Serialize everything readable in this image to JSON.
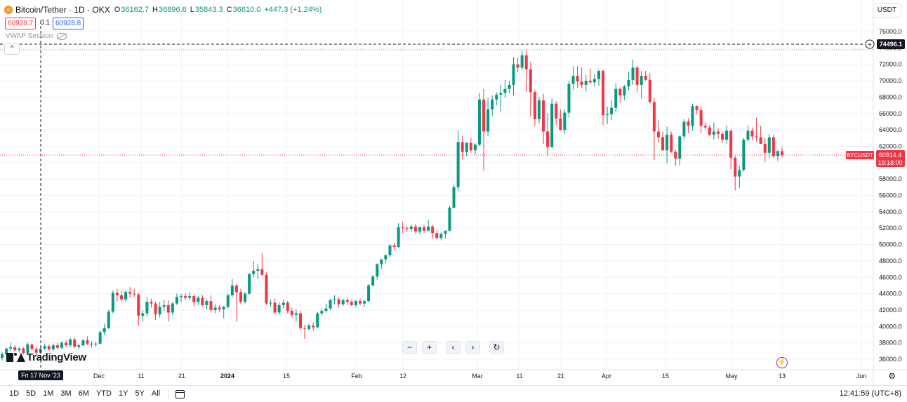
{
  "legend": {
    "symbol": "Bitcoin/Tether · 1D · OKX",
    "open_label": "O",
    "open": "36162.7",
    "high_label": "H",
    "high": "36896.6",
    "low_label": "L",
    "low": "35843.3",
    "close_label": "C",
    "close": "36610.0",
    "change": "+447.3 (+1.24%)"
  },
  "sell_price": "60928.7",
  "spread": "0.1",
  "buy_price": "60928.8",
  "indicator": {
    "name": "VWAP Session"
  },
  "collapse_glyph": "^",
  "currency": "USDT",
  "crosshair": {
    "price_label": "74496.1",
    "date_label": "Fri 17 Nov '23",
    "plus_glyph": "+"
  },
  "last_price": {
    "symbol": "BTCUSDT",
    "price": "60914.4",
    "countdown": "19:18:00"
  },
  "price_axis": [
    "76000.0",
    "74000.0",
    "72000.0",
    "70000.0",
    "68000.0",
    "66000.0",
    "64000.0",
    "62000.0",
    "60000.0",
    "58000.0",
    "56000.0",
    "54000.0",
    "52000.0",
    "50000.0",
    "48000.0",
    "46000.0",
    "44000.0",
    "42000.0",
    "40000.0",
    "38000.0",
    "36000.0"
  ],
  "time_axis": [
    "Dec",
    "11",
    "21",
    "2024",
    "15",
    "Feb",
    "12",
    "Mar",
    "11",
    "21",
    "Apr",
    "15",
    "May",
    "13",
    "Jun"
  ],
  "nav": {
    "zoom_out": "−",
    "zoom_in": "+",
    "scroll_left": "‹",
    "scroll_right": "›",
    "reset": "↻"
  },
  "brand": "TradingView",
  "ranges": [
    "1D",
    "5D",
    "1M",
    "3M",
    "6M",
    "YTD",
    "1Y",
    "5Y",
    "All"
  ],
  "time": "12:41:59 (UTC+8)",
  "colors": {
    "up": "#089981",
    "down": "#f23645",
    "crosshair": "#131722",
    "last_price": "#f23645",
    "grid": "#f0f3fa"
  },
  "chart_data": {
    "type": "candlestick",
    "title": "Bitcoin/Tether · 1D · OKX",
    "ylim": [
      35000,
      77000
    ],
    "candles": [
      [
        36162.7,
        36896.6,
        35843.3,
        36610.0
      ],
      [
        36610.0,
        37400.0,
        36300.0,
        37300.0
      ],
      [
        37300.0,
        38000.0,
        37000.0,
        37450.0
      ],
      [
        37450.0,
        37700.0,
        36900.0,
        37100.0
      ],
      [
        37100.0,
        37500.0,
        36800.0,
        37300.0
      ],
      [
        37300.0,
        37450.0,
        36600.0,
        36750.0
      ],
      [
        36750.0,
        38000.0,
        36600.0,
        37800.0
      ],
      [
        37800.0,
        37900.0,
        37100.0,
        37250.0
      ],
      [
        37250.0,
        37500.0,
        36500.0,
        36800.0
      ],
      [
        36800.0,
        37600.0,
        36600.0,
        37300.0
      ],
      [
        37300.0,
        37900.0,
        37100.0,
        37600.0
      ],
      [
        37600.0,
        37800.0,
        37000.0,
        37200.0
      ],
      [
        37200.0,
        37900.0,
        37000.0,
        37700.0
      ],
      [
        37700.0,
        38000.0,
        37200.0,
        37400.0
      ],
      [
        37400.0,
        38200.0,
        37200.0,
        38000.0
      ],
      [
        38000.0,
        38300.0,
        37500.0,
        37700.0
      ],
      [
        37700.0,
        38600.0,
        37500.0,
        38400.0
      ],
      [
        38400.0,
        38600.0,
        37400.0,
        37500.0
      ],
      [
        37500.0,
        37900.0,
        37200.0,
        37700.0
      ],
      [
        37700.0,
        38500.0,
        37600.0,
        38300.0
      ],
      [
        38300.0,
        38800.0,
        37700.0,
        37900.0
      ],
      [
        37900.0,
        38200.0,
        37400.0,
        37800.0
      ],
      [
        37800.0,
        38100.0,
        37500.0,
        37900.0
      ],
      [
        37900.0,
        39500.0,
        37800.0,
        39300.0
      ],
      [
        39300.0,
        40300.0,
        39000.0,
        39800.0
      ],
      [
        39800.0,
        42000.0,
        39700.0,
        41800.0
      ],
      [
        41800.0,
        44400.0,
        41600.0,
        44100.0
      ],
      [
        44100.0,
        44600.0,
        43100.0,
        43800.0
      ],
      [
        43800.0,
        44300.0,
        43100.0,
        43300.0
      ],
      [
        43300.0,
        44400.0,
        43000.0,
        44200.0
      ],
      [
        44200.0,
        44800.0,
        43500.0,
        44000.0
      ],
      [
        44000.0,
        44600.0,
        43600.0,
        43900.0
      ],
      [
        43900.0,
        44100.0,
        40100.0,
        41300.0
      ],
      [
        41300.0,
        42000.0,
        40600.0,
        41600.0
      ],
      [
        41600.0,
        43600.0,
        41200.0,
        43000.0
      ],
      [
        43000.0,
        43400.0,
        42300.0,
        42800.0
      ],
      [
        42800.0,
        43000.0,
        40800.0,
        41500.0
      ],
      [
        41500.0,
        43000.0,
        41100.0,
        42400.0
      ],
      [
        42400.0,
        43300.0,
        41900.0,
        42600.0
      ],
      [
        42600.0,
        43200.0,
        40600.0,
        41700.0
      ],
      [
        41700.0,
        43000.0,
        41400.0,
        42800.0
      ],
      [
        42800.0,
        44000.0,
        42600.0,
        43600.0
      ],
      [
        43600.0,
        44000.0,
        43000.0,
        43700.0
      ],
      [
        43700.0,
        44000.0,
        43200.0,
        43500.0
      ],
      [
        43500.0,
        44200.0,
        43200.0,
        43700.0
      ],
      [
        43700.0,
        43900.0,
        42500.0,
        43000.0
      ],
      [
        43000.0,
        43700.0,
        42600.0,
        43500.0
      ],
      [
        43500.0,
        43800.0,
        42400.0,
        42600.0
      ],
      [
        42600.0,
        43400.0,
        42100.0,
        43100.0
      ],
      [
        43100.0,
        43800.0,
        41700.0,
        42000.0
      ],
      [
        42000.0,
        42700.0,
        41600.0,
        42300.0
      ],
      [
        42300.0,
        42600.0,
        41800.0,
        42100.0
      ],
      [
        42100.0,
        42500.0,
        41000.0,
        42400.0
      ],
      [
        42400.0,
        44000.0,
        42200.0,
        43800.0
      ],
      [
        43800.0,
        45800.0,
        43600.0,
        45000.0
      ],
      [
        45000.0,
        45200.0,
        40600.0,
        44200.0
      ],
      [
        44200.0,
        44600.0,
        42700.0,
        43000.0
      ],
      [
        43000.0,
        44200.0,
        42800.0,
        44000.0
      ],
      [
        44000.0,
        46500.0,
        43900.0,
        46400.0
      ],
      [
        46400.0,
        48000.0,
        46000.0,
        46800.0
      ],
      [
        46800.0,
        47600.0,
        45800.0,
        47000.0
      ],
      [
        47000.0,
        49000.0,
        46200.0,
        46300.0
      ],
      [
        46300.0,
        46600.0,
        42600.0,
        42800.0
      ],
      [
        42800.0,
        43300.0,
        42400.0,
        42900.0
      ],
      [
        42900.0,
        43400.0,
        41500.0,
        41700.0
      ],
      [
        41700.0,
        43000.0,
        41400.0,
        42600.0
      ],
      [
        42600.0,
        43300.0,
        42200.0,
        42900.0
      ],
      [
        42900.0,
        43100.0,
        41600.0,
        41900.0
      ],
      [
        41900.0,
        42300.0,
        41100.0,
        41400.0
      ],
      [
        41400.0,
        42100.0,
        40600.0,
        41600.0
      ],
      [
        41600.0,
        41900.0,
        39600.0,
        39800.0
      ],
      [
        39800.0,
        40200.0,
        38500.0,
        39700.0
      ],
      [
        39700.0,
        40300.0,
        39500.0,
        40100.0
      ],
      [
        40100.0,
        40500.0,
        39500.0,
        39900.0
      ],
      [
        39900.0,
        41800.0,
        39800.0,
        41600.0
      ],
      [
        41600.0,
        42200.0,
        41300.0,
        41900.0
      ],
      [
        41900.0,
        42800.0,
        41700.0,
        42200.0
      ],
      [
        42200.0,
        43400.0,
        42000.0,
        43200.0
      ],
      [
        43200.0,
        43800.0,
        42700.0,
        43300.0
      ],
      [
        43300.0,
        43600.0,
        42300.0,
        42700.0
      ],
      [
        42700.0,
        43400.0,
        42500.0,
        43200.0
      ],
      [
        43200.0,
        43500.0,
        42600.0,
        43000.0
      ],
      [
        43000.0,
        43300.0,
        42500.0,
        42600.0
      ],
      [
        42600.0,
        43200.0,
        42300.0,
        43100.0
      ],
      [
        43100.0,
        43400.0,
        42600.0,
        42800.0
      ],
      [
        42800.0,
        43200.0,
        42400.0,
        43100.0
      ],
      [
        43100.0,
        45200.0,
        42900.0,
        45000.0
      ],
      [
        45000.0,
        46300.0,
        44900.0,
        46100.0
      ],
      [
        46100.0,
        47700.0,
        45700.0,
        47600.0
      ],
      [
        47600.0,
        48200.0,
        47000.0,
        48200.0
      ],
      [
        48200.0,
        48800.0,
        47700.0,
        48700.0
      ],
      [
        48700.0,
        50000.0,
        48400.0,
        49900.0
      ],
      [
        49900.0,
        50200.0,
        49300.0,
        49700.0
      ],
      [
        49700.0,
        52600.0,
        49600.0,
        52100.0
      ],
      [
        52100.0,
        52800.0,
        51400.0,
        52000.0
      ],
      [
        52000.0,
        52300.0,
        51500.0,
        51900.0
      ],
      [
        51900.0,
        52400.0,
        51600.0,
        52200.0
      ],
      [
        52200.0,
        52500.0,
        51300.0,
        51600.0
      ],
      [
        51600.0,
        52200.0,
        51200.0,
        52100.0
      ],
      [
        52100.0,
        52400.0,
        51400.0,
        51700.0
      ],
      [
        51700.0,
        53000.0,
        51600.0,
        52200.0
      ],
      [
        52200.0,
        52400.0,
        50700.0,
        51400.0
      ],
      [
        51400.0,
        51700.0,
        50600.0,
        50800.0
      ],
      [
        50800.0,
        51500.0,
        50500.0,
        51300.0
      ],
      [
        51300.0,
        51700.0,
        50700.0,
        51700.0
      ],
      [
        51700.0,
        54700.0,
        51600.0,
        54500.0
      ],
      [
        54500.0,
        57300.0,
        54400.0,
        57000.0
      ],
      [
        57000.0,
        63900.0,
        56500.0,
        62500.0
      ],
      [
        62500.0,
        63300.0,
        60400.0,
        61300.0
      ],
      [
        61300.0,
        62500.0,
        60800.0,
        62400.0
      ],
      [
        62400.0,
        63000.0,
        61200.0,
        61500.0
      ],
      [
        61500.0,
        62400.0,
        61000.0,
        62200.0
      ],
      [
        62200.0,
        68500.0,
        62000.0,
        67700.0
      ],
      [
        67700.0,
        69000.0,
        59000.0,
        63800.0
      ],
      [
        63800.0,
        67900.0,
        63200.0,
        66500.0
      ],
      [
        66500.0,
        68200.0,
        65700.0,
        67700.0
      ],
      [
        67700.0,
        68600.0,
        67000.0,
        68300.0
      ],
      [
        68300.0,
        69500.0,
        66200.0,
        68500.0
      ],
      [
        68500.0,
        70100.0,
        67900.0,
        69000.0
      ],
      [
        69000.0,
        70000.0,
        68500.0,
        69500.0
      ],
      [
        69500.0,
        72900.0,
        68200.0,
        72000.0
      ],
      [
        72000.0,
        72800.0,
        71000.0,
        71600.0
      ],
      [
        71600.0,
        73700.0,
        71300.0,
        73100.0
      ],
      [
        73100.0,
        73800.0,
        68600.0,
        71400.0
      ],
      [
        71400.0,
        72300.0,
        65600.0,
        68600.0
      ],
      [
        68600.0,
        68900.0,
        64500.0,
        65300.0
      ],
      [
        65300.0,
        68000.0,
        64800.0,
        67600.0
      ],
      [
        67600.0,
        68400.0,
        62300.0,
        63800.0
      ],
      [
        63800.0,
        66000.0,
        60800.0,
        61900.0
      ],
      [
        61900.0,
        67800.0,
        61800.0,
        67200.0
      ],
      [
        67200.0,
        67500.0,
        64600.0,
        65400.0
      ],
      [
        65400.0,
        66500.0,
        63900.0,
        64000.0
      ],
      [
        64000.0,
        66500.0,
        63500.0,
        66100.0
      ],
      [
        66100.0,
        70000.0,
        65500.0,
        69600.0
      ],
      [
        69600.0,
        71800.0,
        68900.0,
        70600.0
      ],
      [
        70600.0,
        71800.0,
        69100.0,
        69900.0
      ],
      [
        69900.0,
        71600.0,
        69100.0,
        69500.0
      ],
      [
        69500.0,
        70700.0,
        68700.0,
        70000.0
      ],
      [
        70000.0,
        71500.0,
        69600.0,
        69800.0
      ],
      [
        69800.0,
        70800.0,
        69300.0,
        70200.0
      ],
      [
        70200.0,
        71400.0,
        69400.0,
        71200.0
      ],
      [
        71200.0,
        71400.0,
        64600.0,
        65800.0
      ],
      [
        65800.0,
        66800.0,
        64700.0,
        65900.0
      ],
      [
        65900.0,
        67600.0,
        65200.0,
        66700.0
      ],
      [
        66700.0,
        69700.0,
        66200.0,
        69000.0
      ],
      [
        69000.0,
        69200.0,
        67300.0,
        68200.0
      ],
      [
        68200.0,
        69500.0,
        67600.0,
        69300.0
      ],
      [
        69300.0,
        71100.0,
        68800.0,
        70100.0
      ],
      [
        70100.0,
        72600.0,
        69500.0,
        71600.0
      ],
      [
        71600.0,
        71800.0,
        68600.0,
        69500.0
      ],
      [
        69500.0,
        71200.0,
        67800.0,
        70600.0
      ],
      [
        70600.0,
        71200.0,
        70000.0,
        70100.0
      ],
      [
        70100.0,
        70900.0,
        67200.0,
        67400.0
      ],
      [
        67400.0,
        67900.0,
        60300.0,
        63800.0
      ],
      [
        63800.0,
        65200.0,
        62500.0,
        63100.0
      ],
      [
        63100.0,
        63800.0,
        61500.0,
        61500.0
      ],
      [
        61500.0,
        64400.0,
        59900.0,
        63400.0
      ],
      [
        63400.0,
        63800.0,
        61200.0,
        61300.0
      ],
      [
        61300.0,
        61600.0,
        59600.0,
        60500.0
      ],
      [
        60500.0,
        63300.0,
        59700.0,
        63200.0
      ],
      [
        63200.0,
        65300.0,
        62800.0,
        65000.0
      ],
      [
        65000.0,
        65400.0,
        63600.0,
        64500.0
      ],
      [
        64500.0,
        67200.0,
        63900.0,
        66900.0
      ],
      [
        66900.0,
        67000.0,
        65900.0,
        66400.0
      ],
      [
        66400.0,
        66800.0,
        63600.0,
        64500.0
      ],
      [
        64500.0,
        64900.0,
        64000.0,
        64300.0
      ],
      [
        64300.0,
        64600.0,
        63200.0,
        63400.0
      ],
      [
        63400.0,
        64900.0,
        62800.0,
        63800.0
      ],
      [
        63800.0,
        64200.0,
        62900.0,
        63500.0
      ],
      [
        63500.0,
        63800.0,
        62400.0,
        62800.0
      ],
      [
        62800.0,
        64500.0,
        62300.0,
        63900.0
      ],
      [
        63900.0,
        64000.0,
        59200.0,
        60600.0
      ],
      [
        60600.0,
        60800.0,
        56600.0,
        58300.0
      ],
      [
        58300.0,
        59600.0,
        56900.0,
        59100.0
      ],
      [
        59100.0,
        63000.0,
        58900.0,
        62800.0
      ],
      [
        62800.0,
        64500.0,
        62600.0,
        63900.0
      ],
      [
        63900.0,
        64300.0,
        62700.0,
        63200.0
      ],
      [
        63200.0,
        65500.0,
        62600.0,
        63100.0
      ],
      [
        63100.0,
        64500.0,
        62300.0,
        62300.0
      ],
      [
        62300.0,
        63000.0,
        60100.0,
        61200.0
      ],
      [
        61200.0,
        63500.0,
        60600.0,
        63100.0
      ],
      [
        63100.0,
        63400.0,
        60600.0,
        60800.0
      ],
      [
        60800.0,
        61500.0,
        60200.0,
        61400.0
      ],
      [
        61400.0,
        61900.0,
        60600.0,
        60914.4
      ]
    ]
  }
}
